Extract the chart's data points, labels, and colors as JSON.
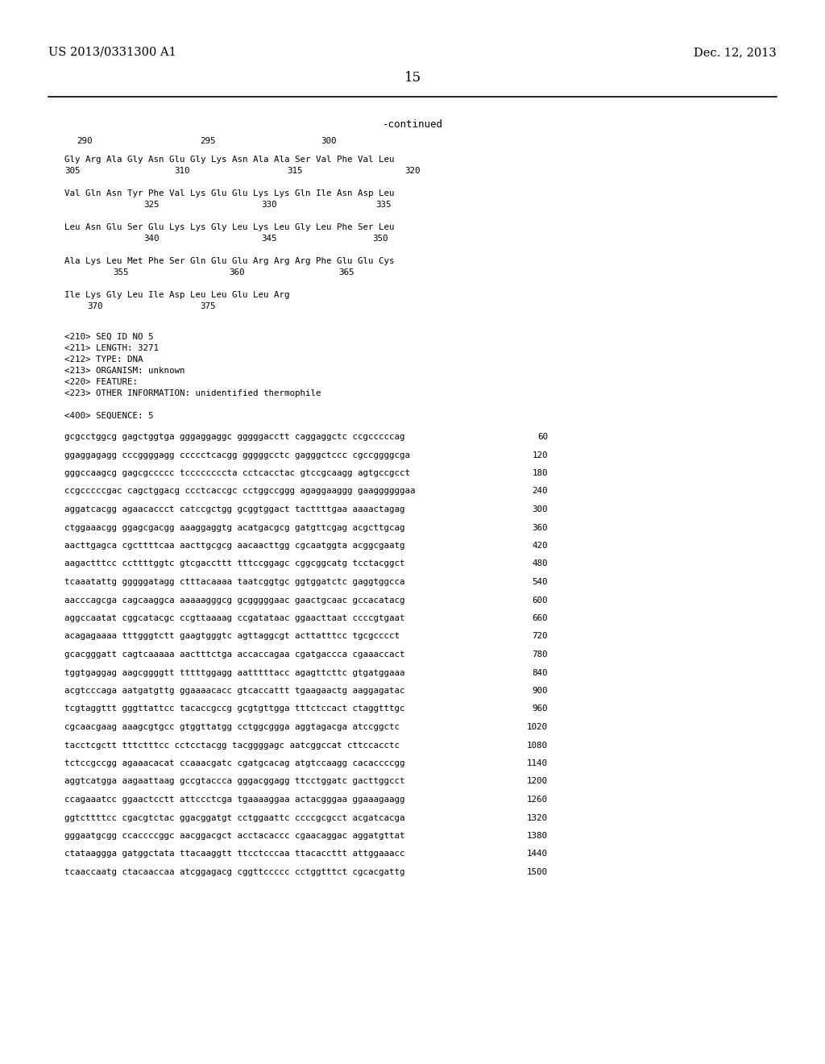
{
  "header_left": "US 2013/0331300 A1",
  "header_right": "Dec. 12, 2013",
  "page_number": "15",
  "continued": "-continued",
  "background_color": "#ffffff",
  "text_color": "#000000",
  "line_color": "#000000",
  "font_size_header": 10.5,
  "font_size_page": 12,
  "font_size_continued": 9,
  "font_size_mono": 7.8,
  "seq_info_lines": [
    "<210> SEQ ID NO 5",
    "<211> LENGTH: 3271",
    "<212> TYPE: DNA",
    "<213> ORGANISM: unknown",
    "<220> FEATURE:",
    "<223> OTHER INFORMATION: unidentified thermophile"
  ],
  "seq_label": "<400> SEQUENCE: 5",
  "dna_lines": [
    [
      "gcgcctggcg gagctggtga gggaggaggc gggggacctt caggaggctc ccgcccccag",
      "60"
    ],
    [
      "ggaggagagg cccggggagg ccccctcacgg gggggcctc gagggctccc cgccggggcga",
      "120"
    ],
    [
      "gggccaagcg gagcgccccc tccccccccta cctcacctac gtccgcaagg agtgccgcct",
      "180"
    ],
    [
      "ccgcccccgac cagctggacg ccctcaccgc cctggccggg agaggaaggg gaaggggggaa",
      "240"
    ],
    [
      "aggatcacgg agaacaccct catccgctgg gcggtggact tacttttgaa aaaactagag",
      "300"
    ],
    [
      "ctggaaacgg ggagcgacgg aaaggaggtg acatgacgcg gatgttcgag acgcttgcag",
      "360"
    ],
    [
      "aacttgagca cgcttttcaa aacttgcgcg aacaacttgg cgcaatggta acggcgaatg",
      "420"
    ],
    [
      "aagactttcc ccttttggtc gtcgaccttt tttccggagc cggcggcatg tcctacggct",
      "480"
    ],
    [
      "tcaaatattg gggggatagg ctttacaaaa taatcggtgc ggtggatctc gaggtggcca",
      "540"
    ],
    [
      "aacccagcga cagcaaggca aaaaagggcg gcgggggaac gaactgcaac gccacatacg",
      "600"
    ],
    [
      "aggccaatat cggcatacgc ccgttaaaag ccgatataac ggaacttaat ccccgtgaat",
      "660"
    ],
    [
      "acagagaaaa tttgggtctt gaagtgggtc agttaggcgt acttatttcc tgcgcccct",
      "720"
    ],
    [
      "gcacgggatt cagtcaaaaa aactttctga accaccagaa cgatgaccca cgaaaccact",
      "780"
    ],
    [
      "tggtgaggag aagcggggtt tttttggagg aatttttacc agagttcttc gtgatggaaa",
      "840"
    ],
    [
      "acgtcccaga aatgatgttg ggaaaacacc gtcaccattt tgaagaactg aaggagatac",
      "900"
    ],
    [
      "tcgtaggttt gggttattcc tacaccgccg gcgtgttgga tttctccact ctaggtttgc",
      "960"
    ],
    [
      "cgcaacgaag aaagcgtgcc gtggttatgg cctggcggga aggtagacga atccggctc",
      "1020"
    ],
    [
      "tacctcgctt tttctttcc cctcctacgg tacggggagc aatcggccat cttccacctc",
      "1080"
    ],
    [
      "tctccgccgg agaaacacat ccaaacgatc cgatgcacag atgtccaagg cacaccccgg",
      "1140"
    ],
    [
      "aggtcatgga aagaattaag gccgtaccca gggacggagg ttcctggatc gacttggcct",
      "1200"
    ],
    [
      "ccagaaatcc ggaactcctt attccctcga tgaaaaggaa actacgggaa ggaaagaagg",
      "1260"
    ],
    [
      "ggtcttttcc cgacgtctac ggacggatgt cctggaattc ccccgcgcct acgatcacga",
      "1320"
    ],
    [
      "gggaatgcgg ccaccccggc aacggacgct acctacaccc cgaacaggac aggatgttat",
      "1380"
    ],
    [
      "ctataaggga gatggctata ttacaaggtt ttcctcccaa ttacaccttt attggaaacc",
      "1440"
    ],
    [
      "tcaaccaatg ctacaaccaa atcggagacg cggttccccc cctggtttct cgcacgattg",
      "1500"
    ]
  ]
}
